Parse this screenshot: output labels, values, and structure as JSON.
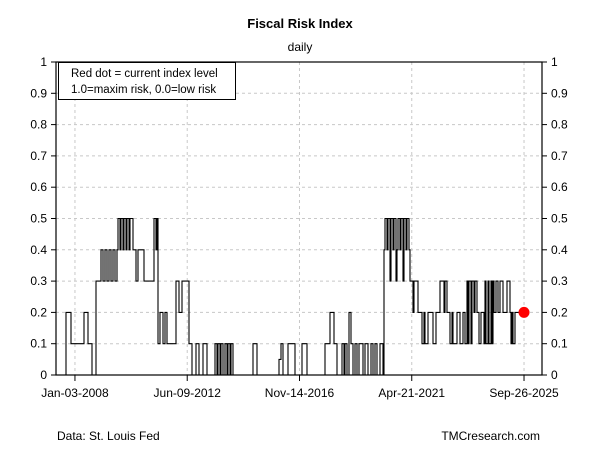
{
  "header": {
    "title": "Fiscal Risk Index",
    "subtitle": "daily"
  },
  "annotation_box": {
    "line1": "Red dot = current index level",
    "line2": "1.0=maxim risk, 0.0=low risk"
  },
  "footer": {
    "left": "Data: St. Louis Fed",
    "right": "TMCresearch.com"
  },
  "chart_data": {
    "type": "line",
    "subtype": "step",
    "title": "Fiscal Risk Index",
    "subtitle": "daily",
    "xlabel": "",
    "ylabel": "",
    "ylim": [
      0,
      1
    ],
    "grid": "dashed",
    "grid_color": "#c8c8c8",
    "line_color": "#000000",
    "yticks": [
      {
        "v": 0,
        "label": "0"
      },
      {
        "v": 0.1,
        "label": "0.1"
      },
      {
        "v": 0.2,
        "label": "0.2"
      },
      {
        "v": 0.3,
        "label": "0.3"
      },
      {
        "v": 0.4,
        "label": "0.4"
      },
      {
        "v": 0.5,
        "label": "0.5"
      },
      {
        "v": 0.6,
        "label": "0.6"
      },
      {
        "v": 0.7,
        "label": "0.7"
      },
      {
        "v": 0.8,
        "label": "0.8"
      },
      {
        "v": 0.9,
        "label": "0.9"
      },
      {
        "v": 1,
        "label": "1"
      }
    ],
    "xticks": [
      {
        "label": "Jan-03-2008",
        "f": 0.039
      },
      {
        "label": "Jun-09-2012",
        "f": 0.27
      },
      {
        "label": "Nov-14-2016",
        "f": 0.501
      },
      {
        "label": "Apr-21-2021",
        "f": 0.732
      },
      {
        "label": "Sep-26-2025",
        "f": 0.963
      }
    ],
    "current_point": {
      "f": 0.963,
      "value": 0.2,
      "color": "#ff0000",
      "radius": 5.5,
      "label": "current index level"
    },
    "x_unit": "px_from_plot_left",
    "x_max": 486,
    "steps": [
      [
        0,
        0
      ],
      [
        10,
        0.2
      ],
      [
        15,
        0.1
      ],
      [
        28,
        0.2
      ],
      [
        32,
        0.1
      ],
      [
        36,
        0
      ],
      [
        40,
        0.3
      ],
      [
        45,
        0.4
      ],
      [
        47,
        0.3
      ],
      [
        49,
        0.4
      ],
      [
        51,
        0.3
      ],
      [
        53,
        0.4
      ],
      [
        55,
        0.3
      ],
      [
        57,
        0.4
      ],
      [
        59,
        0.3
      ],
      [
        61,
        0.4
      ],
      [
        62,
        0.5
      ],
      [
        64,
        0.4
      ],
      [
        65,
        0.5
      ],
      [
        67,
        0.4
      ],
      [
        68,
        0.5
      ],
      [
        70,
        0.4
      ],
      [
        71,
        0.5
      ],
      [
        73,
        0.4
      ],
      [
        74,
        0.5
      ],
      [
        77,
        0.4
      ],
      [
        80,
        0.3
      ],
      [
        82,
        0.4
      ],
      [
        88,
        0.3
      ],
      [
        98,
        0.5
      ],
      [
        100,
        0.4
      ],
      [
        101,
        0.5
      ],
      [
        102,
        0.1
      ],
      [
        104,
        0.2
      ],
      [
        107,
        0.1
      ],
      [
        109,
        0.2
      ],
      [
        111,
        0.1
      ],
      [
        120,
        0.3
      ],
      [
        123,
        0.2
      ],
      [
        126,
        0.3
      ],
      [
        133,
        0.1
      ],
      [
        136,
        0
      ],
      [
        140,
        0.1
      ],
      [
        143,
        0
      ],
      [
        147,
        0.1
      ],
      [
        151,
        0
      ],
      [
        159,
        0.1
      ],
      [
        161,
        0
      ],
      [
        162,
        0.1
      ],
      [
        164,
        0
      ],
      [
        165,
        0.1
      ],
      [
        167,
        0
      ],
      [
        169,
        0.1
      ],
      [
        171,
        0
      ],
      [
        172,
        0.1
      ],
      [
        174,
        0
      ],
      [
        175,
        0.1
      ],
      [
        177,
        0
      ],
      [
        197,
        0.1
      ],
      [
        201,
        0
      ],
      [
        223,
        0.05
      ],
      [
        225,
        0.1
      ],
      [
        227,
        0
      ],
      [
        232,
        0.1
      ],
      [
        239,
        0
      ],
      [
        246,
        0.1
      ],
      [
        251,
        0
      ],
      [
        269,
        0.1
      ],
      [
        274,
        0.2
      ],
      [
        278,
        0.1
      ],
      [
        281,
        0
      ],
      [
        286,
        0.1
      ],
      [
        288,
        0
      ],
      [
        289,
        0.1
      ],
      [
        291,
        0
      ],
      [
        293,
        0.2
      ],
      [
        295,
        0.1
      ],
      [
        297,
        0
      ],
      [
        299,
        0.1
      ],
      [
        301,
        0
      ],
      [
        303,
        0.1
      ],
      [
        307,
        0
      ],
      [
        309,
        0.1
      ],
      [
        312,
        0
      ],
      [
        315,
        0.1
      ],
      [
        317,
        0
      ],
      [
        319,
        0.1
      ],
      [
        321,
        0
      ],
      [
        324,
        0.1
      ],
      [
        327,
        0
      ],
      [
        328,
        0.4
      ],
      [
        329,
        0.5
      ],
      [
        331,
        0.4
      ],
      [
        332,
        0.5
      ],
      [
        334,
        0.3
      ],
      [
        335,
        0.5
      ],
      [
        337,
        0.4
      ],
      [
        338,
        0.5
      ],
      [
        340,
        0.3
      ],
      [
        341,
        0.4
      ],
      [
        342,
        0.5
      ],
      [
        344,
        0.4
      ],
      [
        345,
        0.5
      ],
      [
        347,
        0.3
      ],
      [
        348,
        0.5
      ],
      [
        350,
        0.4
      ],
      [
        351,
        0.5
      ],
      [
        353,
        0.4
      ],
      [
        354,
        0.3
      ],
      [
        357,
        0.2
      ],
      [
        358,
        0.3
      ],
      [
        362,
        0.2
      ],
      [
        366,
        0.1
      ],
      [
        368,
        0.2
      ],
      [
        369,
        0.1
      ],
      [
        372,
        0.2
      ],
      [
        377,
        0.1
      ],
      [
        380,
        0.2
      ],
      [
        384,
        0.3
      ],
      [
        388,
        0.2
      ],
      [
        389,
        0.3
      ],
      [
        391,
        0.2
      ],
      [
        394,
        0.1
      ],
      [
        396,
        0.2
      ],
      [
        397,
        0.1
      ],
      [
        401,
        0.2
      ],
      [
        404,
        0.1
      ],
      [
        407,
        0.2
      ],
      [
        409,
        0.1
      ],
      [
        411,
        0.3
      ],
      [
        412,
        0.1
      ],
      [
        413,
        0.3
      ],
      [
        415,
        0.1
      ],
      [
        416,
        0.3
      ],
      [
        418,
        0.2
      ],
      [
        419,
        0.3
      ],
      [
        421,
        0.2
      ],
      [
        423,
        0.1
      ],
      [
        425,
        0.2
      ],
      [
        428,
        0.1
      ],
      [
        429,
        0.3
      ],
      [
        430,
        0.1
      ],
      [
        432,
        0.3
      ],
      [
        433,
        0.1
      ],
      [
        435,
        0.3
      ],
      [
        436,
        0.1
      ],
      [
        437,
        0.3
      ],
      [
        438,
        0.2
      ],
      [
        440,
        0.3
      ],
      [
        442,
        0.2
      ],
      [
        444,
        0.3
      ],
      [
        447,
        0.2
      ],
      [
        451,
        0.3
      ],
      [
        454,
        0.2
      ],
      [
        455,
        0.1
      ],
      [
        456,
        0.2
      ],
      [
        457,
        0.1
      ],
      [
        459,
        0.2
      ],
      [
        464,
        0.2
      ]
    ]
  }
}
